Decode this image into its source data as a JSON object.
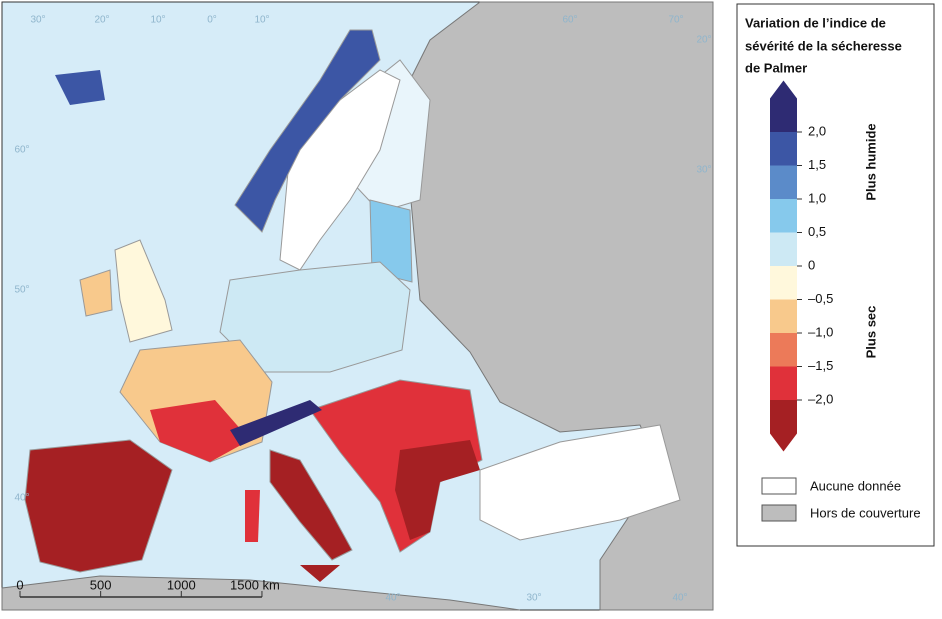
{
  "legend": {
    "title": [
      "Variation de l’indice de",
      "sévérité de la sécheresse",
      "de Palmer"
    ],
    "ticks": [
      {
        "value": 2.0,
        "label": "2,0"
      },
      {
        "value": 1.5,
        "label": "1,5"
      },
      {
        "value": 1.0,
        "label": "1,0"
      },
      {
        "value": 0.5,
        "label": "0,5"
      },
      0,
      {
        "value": -0.5,
        "label": "–0,5"
      },
      {
        "value": -1.0,
        "label": "–1,0"
      },
      {
        "value": -1.5,
        "label": "–1,5"
      },
      {
        "value": -2.0,
        "label": "–2,0"
      }
    ],
    "colors": [
      "#2e2b73",
      "#3c56a5",
      "#5b8bc9",
      "#86c9ec",
      "#cde9f4",
      "#fff8dc",
      "#f8c98c",
      "#ec7a59",
      "#e0313a",
      "#a52023"
    ],
    "wetter": "Plus humide",
    "drier": "Plus sec",
    "no_data": "Aucune donnée",
    "no_coverage": "Hors de couverture"
  },
  "scale_bar": {
    "ticks": [
      0,
      500,
      1000,
      {
        "value": 1500,
        "label": "1500 km"
      }
    ]
  },
  "graticule": [
    "30°",
    "20°",
    "10°",
    "0°",
    "10°",
    "60°",
    "70°",
    "60°",
    "50°",
    "40°",
    "40°",
    "30°",
    "20°",
    "30°",
    "40°"
  ]
}
